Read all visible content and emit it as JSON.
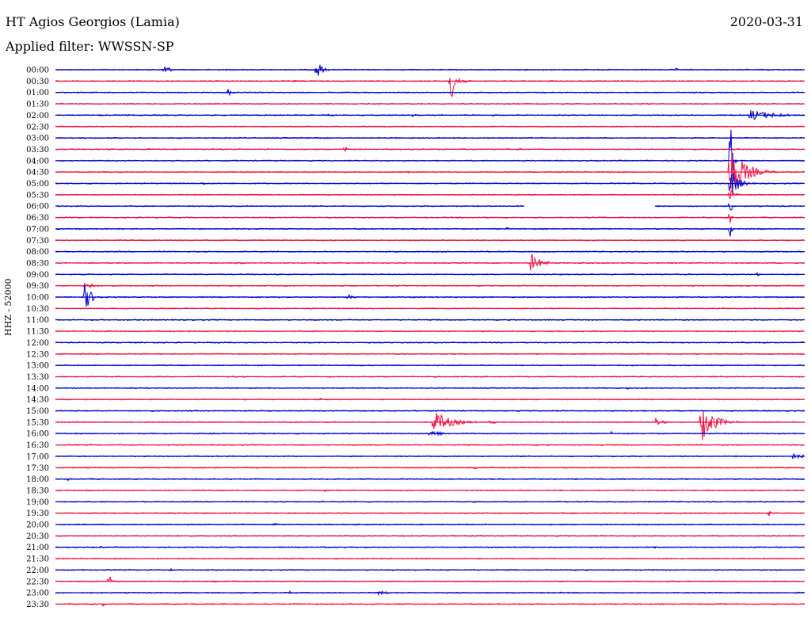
{
  "header": {
    "station": "HT Agios Georgios (Lamia)",
    "date": "2020-03-31",
    "filter": "Applied filter: WWSSN-SP"
  },
  "channel_label": "HHZ - 52000",
  "colors": {
    "blue": "#0000cc",
    "red": "#ee1144"
  },
  "traces": [
    {
      "time": "00:00",
      "color": "blue",
      "events": [
        {
          "x": 208,
          "amp": 9,
          "w": 10
        },
        {
          "x": 400,
          "amp": 13,
          "w": 12
        },
        {
          "x": 854,
          "amp": 2,
          "w": 6
        }
      ]
    },
    {
      "time": "00:30",
      "color": "red",
      "events": [
        {
          "x": 569,
          "amp": 26,
          "w": 14
        },
        {
          "x": 372,
          "amp": 2,
          "w": 4
        }
      ]
    },
    {
      "time": "01:00",
      "color": "blue",
      "events": [
        {
          "x": 288,
          "amp": 5,
          "w": 10
        }
      ]
    },
    {
      "time": "01:30",
      "color": "red",
      "events": []
    },
    {
      "time": "02:00",
      "color": "blue",
      "events": [
        {
          "x": 128,
          "amp": 2,
          "w": 8
        },
        {
          "x": 415,
          "amp": 2,
          "w": 14
        },
        {
          "x": 520,
          "amp": 2,
          "w": 16
        },
        {
          "x": 622,
          "amp": 2,
          "w": 6
        },
        {
          "x": 948,
          "amp": 7,
          "w": 60
        }
      ]
    },
    {
      "time": "02:30",
      "color": "red",
      "events": [
        {
          "x": 165,
          "amp": 2,
          "w": 4
        }
      ]
    },
    {
      "time": "03:00",
      "color": "blue",
      "events": []
    },
    {
      "time": "03:30",
      "color": "red",
      "events": [
        {
          "x": 186,
          "amp": 2,
          "w": 10
        },
        {
          "x": 436,
          "amp": 4,
          "w": 6
        },
        {
          "x": 656,
          "amp": 2,
          "w": 5
        }
      ]
    },
    {
      "time": "04:00",
      "color": "blue",
      "events": [
        {
          "x": 923,
          "amp": 60,
          "w": 4
        }
      ]
    },
    {
      "time": "04:30",
      "color": "red",
      "events": [
        {
          "x": 922,
          "amp": 34,
          "w": 34
        },
        {
          "x": 515,
          "amp": 2,
          "w": 6
        }
      ]
    },
    {
      "time": "05:00",
      "color": "blue",
      "events": [
        {
          "x": 922,
          "amp": 22,
          "w": 18
        },
        {
          "x": 255,
          "amp": 2,
          "w": 20
        }
      ]
    },
    {
      "time": "05:30",
      "color": "red",
      "events": [
        {
          "x": 922,
          "amp": 8,
          "w": 10
        }
      ]
    },
    {
      "time": "06:00",
      "color": "blue",
      "gap": [
        662,
        827
      ],
      "events": [
        {
          "x": 922,
          "amp": 14,
          "w": 4
        }
      ]
    },
    {
      "time": "06:30",
      "color": "red",
      "events": [
        {
          "x": 922,
          "amp": 8,
          "w": 4
        }
      ]
    },
    {
      "time": "07:00",
      "color": "blue",
      "events": [
        {
          "x": 922,
          "amp": 10,
          "w": 4
        },
        {
          "x": 640,
          "amp": 2,
          "w": 10
        },
        {
          "x": 842,
          "amp": 2,
          "w": 8
        }
      ]
    },
    {
      "time": "07:30",
      "color": "red",
      "events": []
    },
    {
      "time": "08:00",
      "color": "blue",
      "events": []
    },
    {
      "time": "08:30",
      "color": "red",
      "events": [
        {
          "x": 670,
          "amp": 13,
          "w": 22
        },
        {
          "x": 300,
          "amp": 2,
          "w": 20
        }
      ]
    },
    {
      "time": "09:00",
      "color": "blue",
      "events": [
        {
          "x": 956,
          "amp": 3,
          "w": 6
        }
      ]
    },
    {
      "time": "09:30",
      "color": "red",
      "events": [
        {
          "x": 108,
          "amp": 5,
          "w": 20
        }
      ]
    },
    {
      "time": "10:00",
      "color": "blue",
      "events": [
        {
          "x": 107,
          "amp": 18,
          "w": 16
        },
        {
          "x": 440,
          "amp": 3,
          "w": 22
        }
      ]
    },
    {
      "time": "10:30",
      "color": "red",
      "events": []
    },
    {
      "time": "11:00",
      "color": "blue",
      "events": []
    },
    {
      "time": "11:30",
      "color": "red",
      "events": []
    },
    {
      "time": "12:00",
      "color": "blue",
      "events": []
    },
    {
      "time": "12:30",
      "color": "red",
      "events": []
    },
    {
      "time": "13:00",
      "color": "blue",
      "events": []
    },
    {
      "time": "13:30",
      "color": "red",
      "events": []
    },
    {
      "time": "14:00",
      "color": "blue",
      "events": [
        {
          "x": 793,
          "amp": 2,
          "w": 4
        }
      ]
    },
    {
      "time": "14:30",
      "color": "red",
      "events": [
        {
          "x": 405,
          "amp": 2,
          "w": 10
        }
      ]
    },
    {
      "time": "15:00",
      "color": "blue",
      "events": []
    },
    {
      "time": "15:30",
      "color": "red",
      "events": [
        {
          "x": 548,
          "amp": 14,
          "w": 40
        },
        {
          "x": 620,
          "amp": 3,
          "w": 14
        },
        {
          "x": 828,
          "amp": 6,
          "w": 18
        },
        {
          "x": 886,
          "amp": 26,
          "w": 28
        }
      ]
    },
    {
      "time": "16:00",
      "color": "blue",
      "events": [
        {
          "x": 543,
          "amp": 5,
          "w": 28
        },
        {
          "x": 772,
          "amp": 3,
          "w": 5
        }
      ]
    },
    {
      "time": "16:30",
      "color": "red",
      "events": []
    },
    {
      "time": "17:00",
      "color": "blue",
      "events": [
        {
          "x": 1000,
          "amp": 4,
          "w": 30
        },
        {
          "x": 700,
          "amp": 2,
          "w": 5
        }
      ]
    },
    {
      "time": "17:30",
      "color": "red",
      "events": [
        {
          "x": 600,
          "amp": 2,
          "w": 6
        }
      ]
    },
    {
      "time": "18:00",
      "color": "blue",
      "events": [
        {
          "x": 86,
          "amp": 2,
          "w": 10
        }
      ]
    },
    {
      "time": "18:30",
      "color": "red",
      "events": [
        {
          "x": 410,
          "amp": 2,
          "w": 12
        }
      ]
    },
    {
      "time": "19:00",
      "color": "blue",
      "events": []
    },
    {
      "time": "19:30",
      "color": "red",
      "events": [
        {
          "x": 971,
          "amp": 4,
          "w": 6
        }
      ]
    },
    {
      "time": "20:00",
      "color": "blue",
      "events": [
        {
          "x": 348,
          "amp": 3,
          "w": 5
        }
      ]
    },
    {
      "time": "20:30",
      "color": "red",
      "events": []
    },
    {
      "time": "21:00",
      "color": "blue",
      "events": [
        {
          "x": 410,
          "amp": 2,
          "w": 6
        },
        {
          "x": 826,
          "amp": 2,
          "w": 6
        },
        {
          "x": 128,
          "amp": 2,
          "w": 8
        }
      ]
    },
    {
      "time": "21:30",
      "color": "red",
      "events": []
    },
    {
      "time": "22:00",
      "color": "blue",
      "events": [
        {
          "x": 216,
          "amp": 2,
          "w": 6
        }
      ]
    },
    {
      "time": "22:30",
      "color": "red",
      "events": [
        {
          "x": 138,
          "amp": 8,
          "w": 8
        },
        {
          "x": 270,
          "amp": 2,
          "w": 10
        }
      ]
    },
    {
      "time": "23:00",
      "color": "blue",
      "events": [
        {
          "x": 478,
          "amp": 3,
          "w": 24
        },
        {
          "x": 366,
          "amp": 2,
          "w": 6
        }
      ]
    },
    {
      "time": "23:30",
      "color": "red",
      "events": [
        {
          "x": 130,
          "amp": 3,
          "w": 6
        }
      ]
    }
  ]
}
